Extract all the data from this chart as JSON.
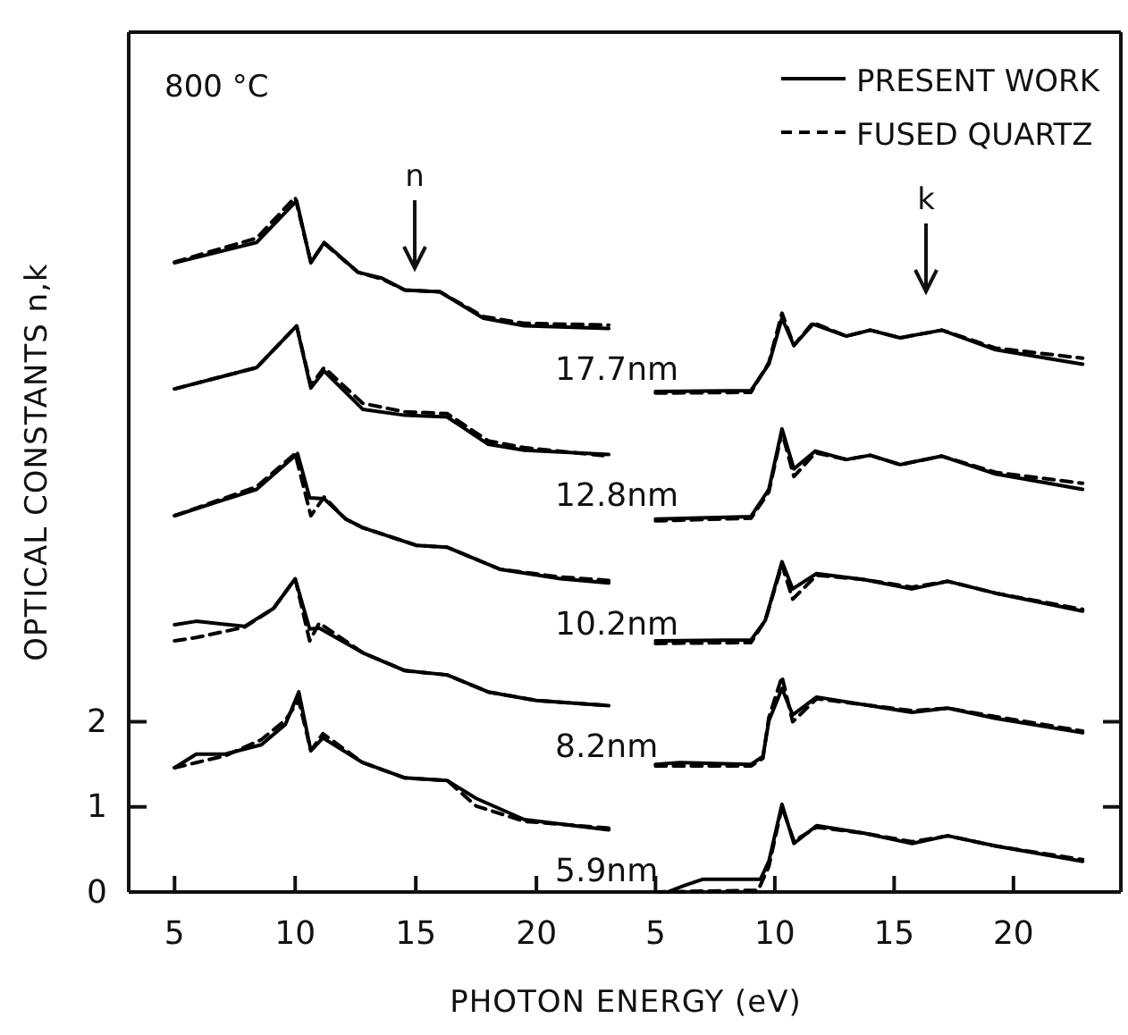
{
  "chart_data": [
    {
      "type": "line",
      "ylabel": "OPTICAL CONSTANTS  n,k",
      "xlabel": "PHOTON ENERGY (eV)",
      "xlim": [
        3.1,
        23.7
      ],
      "xticks": [
        5,
        10,
        15,
        20
      ],
      "ylim": [
        0,
        10.1
      ],
      "yticks": [
        0,
        1,
        2
      ],
      "legend": false,
      "annotations": [
        "800 °C",
        "n"
      ],
      "series": [
        {
          "name": "17.7nm",
          "color": "#000000",
          "line_style": "solid",
          "x": [
            5,
            8.4,
            10.06,
            10.65,
            11.2,
            12.6,
            13.6,
            14.55,
            16,
            17.8,
            19.5,
            23
          ],
          "values": [
            7.39,
            7.63,
            8.12,
            7.39,
            7.63,
            7.28,
            7.21,
            7.07,
            7.05,
            6.74,
            6.65,
            6.62
          ]
        },
        {
          "color": "#000000",
          "line_style": "dashed",
          "x": [
            5,
            8.4,
            10.0,
            10.65,
            11.2,
            12.6,
            13.6,
            14.55,
            16,
            17.8,
            19.5,
            23
          ],
          "values": [
            7.4,
            7.68,
            8.16,
            7.4,
            7.62,
            7.28,
            7.2,
            7.07,
            7.05,
            6.76,
            6.68,
            6.66
          ]
        },
        {
          "name": "12.8nm",
          "color": "#000000",
          "line_style": "solid",
          "x": [
            5,
            8.4,
            10.06,
            10.65,
            11.2,
            12.8,
            14.55,
            16.3,
            18.0,
            19.5,
            23
          ],
          "values": [
            5.91,
            6.16,
            6.65,
            5.92,
            6.12,
            5.67,
            5.6,
            5.58,
            5.26,
            5.19,
            5.14
          ]
        },
        {
          "color": "#000000",
          "line_style": "dashed",
          "x": [
            5,
            8.4,
            10.06,
            10.65,
            11.2,
            12.8,
            14.55,
            16.3,
            18.0,
            19.5,
            23
          ],
          "values": [
            5.91,
            6.16,
            6.65,
            5.95,
            6.16,
            5.74,
            5.64,
            5.62,
            5.3,
            5.22,
            5.12
          ]
        },
        {
          "name": "10.2nm",
          "color": "#000000",
          "line_style": "solid",
          "x": [
            5,
            8.4,
            10.1,
            10.6,
            11.2,
            12.1,
            12.8,
            15.05,
            16.3,
            18.5,
            21,
            23
          ],
          "values": [
            4.42,
            4.73,
            5.15,
            4.63,
            4.62,
            4.38,
            4.28,
            4.07,
            4.05,
            3.79,
            3.68,
            3.63
          ]
        },
        {
          "color": "#000000",
          "line_style": "dashed",
          "x": [
            5,
            8.4,
            10.0,
            10.65,
            11.2,
            12.1,
            12.8,
            15.05,
            16.3,
            18.5,
            21,
            23
          ],
          "values": [
            4.42,
            4.76,
            5.15,
            4.42,
            4.64,
            4.38,
            4.28,
            4.07,
            4.05,
            3.79,
            3.7,
            3.66
          ]
        },
        {
          "name": "8.2nm",
          "color": "#000000",
          "line_style": "solid",
          "x": [
            5,
            5.9,
            7.9,
            9.1,
            10.0,
            10.6,
            11.0,
            12.8,
            14.55,
            16.3,
            18.0,
            20,
            23
          ],
          "values": [
            3.14,
            3.18,
            3.12,
            3.33,
            3.68,
            3.09,
            3.1,
            2.81,
            2.6,
            2.55,
            2.35,
            2.25,
            2.19
          ]
        },
        {
          "color": "#000000",
          "line_style": "dashed",
          "x": [
            5,
            5.9,
            7.9,
            9.1,
            10.0,
            10.6,
            11.0,
            12.8,
            14.55,
            16.3,
            18.0,
            20,
            23
          ],
          "values": [
            2.95,
            2.99,
            3.11,
            3.33,
            3.68,
            2.95,
            3.16,
            2.81,
            2.6,
            2.55,
            2.35,
            2.25,
            2.19
          ]
        },
        {
          "name": "5.9nm",
          "color": "#000000",
          "line_style": "solid",
          "x": [
            5,
            5.9,
            7.1,
            8.6,
            9.6,
            10.15,
            10.65,
            11.15,
            12.8,
            14.55,
            16.3,
            17.5,
            19.5,
            23
          ],
          "values": [
            1.46,
            1.62,
            1.62,
            1.73,
            1.97,
            2.35,
            1.66,
            1.81,
            1.52,
            1.34,
            1.31,
            1.1,
            0.85,
            0.73
          ]
        },
        {
          "color": "#000000",
          "line_style": "dashed",
          "x": [
            5,
            5.9,
            7.1,
            8.6,
            9.6,
            10.15,
            10.65,
            11.15,
            12.8,
            14.55,
            16.3,
            17.5,
            19.5,
            23
          ],
          "values": [
            1.46,
            1.52,
            1.6,
            1.79,
            2.02,
            2.25,
            1.66,
            1.86,
            1.52,
            1.34,
            1.31,
            1.01,
            0.83,
            0.75
          ]
        }
      ]
    },
    {
      "type": "line",
      "xlim": [
        3.75,
        24.5
      ],
      "xticks": [
        5,
        10,
        15,
        20
      ],
      "ylim": [
        0,
        10.1
      ],
      "yticks": [
        0,
        1,
        2
      ],
      "tick_labels": "x",
      "legend": "top right",
      "annotations": [
        "k"
      ],
      "series": [
        {
          "name": "PRESENT WORK",
          "color": "#000000",
          "line_style": "solid",
          "x": [
            5,
            9.0,
            9.75,
            10.3,
            10.8,
            11.6,
            13.0,
            14.0,
            15.25,
            17.0,
            19.25,
            22.9
          ],
          "values": [
            5.88,
            5.89,
            6.2,
            6.74,
            6.42,
            6.67,
            6.53,
            6.6,
            6.51,
            6.6,
            6.37,
            6.2
          ]
        },
        {
          "name": "FUSED QUARTZ",
          "color": "#000000",
          "line_style": "dashed",
          "x": [
            5,
            9.0,
            9.75,
            10.3,
            10.8,
            11.6,
            13.0,
            14.0,
            15.25,
            17.0,
            19.25,
            22.9
          ],
          "values": [
            5.86,
            5.87,
            6.22,
            6.8,
            6.42,
            6.69,
            6.53,
            6.6,
            6.51,
            6.6,
            6.39,
            6.27
          ]
        },
        {
          "color": "#000000",
          "line_style": "solid",
          "x": [
            5,
            9.0,
            9.75,
            10.3,
            10.8,
            11.7,
            13,
            14,
            15.25,
            17,
            19.25,
            22.9
          ],
          "values": [
            4.38,
            4.41,
            4.73,
            5.44,
            4.97,
            5.18,
            5.08,
            5.13,
            5.02,
            5.12,
            4.91,
            4.73
          ]
        },
        {
          "color": "#000000",
          "line_style": "dashed",
          "x": [
            5,
            9.0,
            9.75,
            10.3,
            10.8,
            11.7,
            13,
            14,
            15.25,
            17,
            19.25,
            22.9
          ],
          "values": [
            4.36,
            4.39,
            4.7,
            5.4,
            4.88,
            5.16,
            5.08,
            5.13,
            5.02,
            5.12,
            4.93,
            4.8
          ]
        },
        {
          "color": "#000000",
          "line_style": "solid",
          "x": [
            5,
            9.0,
            9.6,
            10.3,
            10.75,
            11.75,
            13.75,
            15.75,
            17.25,
            19.25,
            22.9
          ],
          "values": [
            2.95,
            2.96,
            3.19,
            3.88,
            3.56,
            3.74,
            3.67,
            3.56,
            3.65,
            3.51,
            3.3
          ]
        },
        {
          "color": "#000000",
          "line_style": "dashed",
          "x": [
            5,
            9.0,
            9.6,
            10.3,
            10.75,
            11.75,
            13.75,
            15.75,
            17.25,
            19.25,
            22.9
          ],
          "values": [
            2.92,
            2.93,
            3.19,
            3.84,
            3.44,
            3.72,
            3.67,
            3.58,
            3.65,
            3.51,
            3.32
          ]
        },
        {
          "color": "#000000",
          "line_style": "solid",
          "x": [
            5,
            6.0,
            9.0,
            9.5,
            9.75,
            10.3,
            10.75,
            11.75,
            13.75,
            15.75,
            17.25,
            19.25,
            22.9
          ],
          "values": [
            1.5,
            1.52,
            1.5,
            1.59,
            2.01,
            2.39,
            2.08,
            2.29,
            2.2,
            2.11,
            2.16,
            2.04,
            1.87
          ]
        },
        {
          "color": "#000000",
          "line_style": "dashed",
          "x": [
            5,
            6.0,
            9.0,
            9.5,
            9.75,
            10.3,
            10.75,
            11.75,
            13.75,
            15.75,
            17.25,
            19.25,
            22.9
          ],
          "values": [
            1.48,
            1.48,
            1.48,
            1.57,
            2.05,
            2.53,
            2.0,
            2.27,
            2.2,
            2.13,
            2.16,
            2.06,
            1.89
          ]
        },
        {
          "color": "#000000",
          "line_style": "solid",
          "x": [
            5.5,
            6.25,
            7.0,
            9.4,
            9.75,
            10.3,
            10.8,
            11.75,
            13.75,
            15.75,
            17.25,
            19.25,
            22.9
          ],
          "values": [
            0.0,
            0.08,
            0.15,
            0.15,
            0.36,
            1.03,
            0.57,
            0.78,
            0.69,
            0.57,
            0.66,
            0.54,
            0.36
          ]
        },
        {
          "color": "#000000",
          "line_style": "dashed",
          "x": [
            5,
            7.0,
            9.3,
            9.75,
            10.3,
            10.8,
            11.75,
            13.75,
            15.75,
            17.25,
            19.25,
            22.9
          ],
          "values": [
            0.0,
            0.01,
            0.02,
            0.3,
            1.0,
            0.6,
            0.76,
            0.69,
            0.59,
            0.66,
            0.54,
            0.38
          ]
        }
      ]
    }
  ]
}
